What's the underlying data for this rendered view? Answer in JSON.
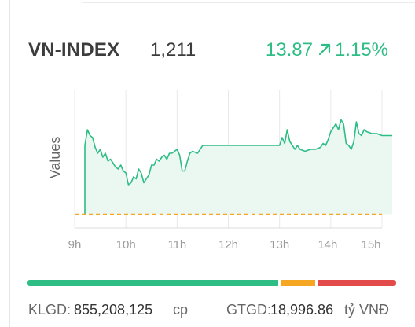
{
  "header": {
    "index_name": "VN-INDEX",
    "index_value": "1,211",
    "change": "13.87",
    "change_percent": "1.15%",
    "up_icon": "arrow-up-right-icon",
    "up_color": "#2ebd85"
  },
  "chart_data": {
    "type": "area",
    "ylabel": "Values",
    "x_ticks": [
      "9h",
      "10h",
      "11h",
      "12h",
      "13h",
      "14h",
      "15h"
    ],
    "reference_line": {
      "style": "dashed",
      "color": "#f5a623"
    },
    "series": [
      {
        "color": "#2ebd85",
        "fill": "#eaf8f1",
        "x": [
          9.2,
          9.25,
          9.3,
          9.35,
          9.4,
          9.45,
          9.5,
          9.55,
          9.6,
          9.65,
          9.7,
          9.75,
          9.8,
          9.85,
          9.9,
          9.95,
          10.0,
          10.05,
          10.1,
          10.15,
          10.2,
          10.25,
          10.3,
          10.35,
          10.4,
          10.45,
          10.5,
          10.55,
          10.6,
          10.65,
          10.7,
          10.75,
          10.8,
          10.85,
          10.9,
          10.95,
          11.0,
          11.05,
          11.1,
          11.15,
          11.2,
          11.25,
          11.3,
          11.4,
          11.5,
          12.0,
          12.5,
          13.0,
          13.05,
          13.1,
          13.15,
          13.2,
          13.25,
          13.3,
          13.35,
          13.4,
          13.5,
          13.6,
          13.7,
          13.8,
          13.85,
          13.9,
          13.95,
          14.0,
          14.05,
          14.1,
          14.15,
          14.2,
          14.25,
          14.3,
          14.35,
          14.4,
          14.45,
          14.5,
          14.55,
          14.6,
          14.65,
          14.7,
          14.8,
          14.9,
          15.0,
          15.1,
          15.2
        ],
        "y": [
          22,
          30,
          27,
          26,
          21,
          18,
          20,
          16,
          18,
          14,
          15,
          13,
          11,
          10,
          12,
          9,
          8,
          2,
          3,
          6,
          5,
          10,
          8,
          3,
          5,
          7,
          12,
          12,
          15,
          14,
          16,
          17,
          15,
          18,
          18,
          19,
          20,
          17,
          9,
          9,
          14,
          18,
          19,
          18,
          22,
          22,
          22,
          22,
          26,
          23,
          30,
          24,
          22,
          20,
          22,
          20,
          19,
          20,
          20,
          21,
          23,
          22,
          25,
          29,
          31,
          33,
          30,
          35,
          33,
          23,
          22,
          20,
          24,
          34,
          28,
          27,
          30,
          29,
          28,
          28,
          27,
          27,
          27
        ]
      }
    ]
  },
  "volume_bar": {
    "segments": [
      {
        "label": "up",
        "fraction": 0.69,
        "color": "#2ebd85"
      },
      {
        "label": "unchanged",
        "fraction": 0.1,
        "color": "#f5a623"
      },
      {
        "label": "down",
        "fraction": 0.21,
        "color": "#e34b4b"
      }
    ]
  },
  "footer": {
    "klgd_label": "KLGD:",
    "klgd_value": "855,208,125",
    "klgd_unit": "cp",
    "gtgd_label": "GTGD:",
    "gtgd_value": "18,996.86",
    "gtgd_unit": "tỷ VNĐ"
  }
}
